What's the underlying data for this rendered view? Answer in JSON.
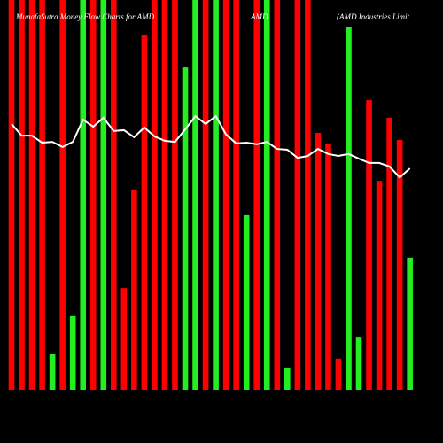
{
  "chart_data": {
    "type": "bar",
    "title": "MunafaSutra Money Flow Charts for AMD",
    "subtitle": "AMD",
    "company": "(AMD Industries Limit",
    "categories": [
      null,
      null,
      null,
      null,
      null,
      null,
      null,
      null,
      null,
      null,
      null,
      null,
      null,
      null,
      null,
      null,
      null,
      null,
      null,
      null,
      null,
      null,
      null,
      null,
      null,
      null,
      null,
      null,
      null,
      null,
      null,
      null,
      null,
      null,
      null,
      null,
      null,
      null,
      null,
      null
    ],
    "values": [
      100,
      100,
      100,
      100,
      9.1,
      100,
      18.9,
      100,
      100,
      100,
      100,
      26.1,
      51.4,
      91.1,
      100,
      100,
      100,
      82.7,
      100,
      100,
      100,
      100,
      100,
      44.8,
      100,
      100,
      100,
      5.7,
      100,
      100,
      65.9,
      63,
      8,
      93,
      13.6,
      74.3,
      53.6,
      69.8,
      64.1,
      33.9
    ],
    "colors": [
      "#ff0000",
      "#ff0000",
      "#ff0000",
      "#ff0000",
      "#22ee22",
      "#ff0000",
      "#22ee22",
      "#22ee22",
      "#ff0000",
      "#22ee22",
      "#ff0000",
      "#ff0000",
      "#ff0000",
      "#ff0000",
      "#ff0000",
      "#ff0000",
      "#ff0000",
      "#22ee22",
      "#22ee22",
      "#ff0000",
      "#22ee22",
      "#ff0000",
      "#ff0000",
      "#22ee22",
      "#ff0000",
      "#22ee22",
      "#ff0000",
      "#22ee22",
      "#ff0000",
      "#ff0000",
      "#ff0000",
      "#ff0000",
      "#ff0000",
      "#22ee22",
      "#22ee22",
      "#ff0000",
      "#ff0000",
      "#ff0000",
      "#ff0000",
      "#22ee22"
    ],
    "line": {
      "color": "#ffffff",
      "values": [
        68.2,
        65.2,
        65.2,
        63.4,
        63.6,
        62.3,
        63.6,
        69.3,
        67.5,
        69.8,
        66.4,
        66.6,
        64.8,
        67.3,
        65,
        63.9,
        63.6,
        66.8,
        70.2,
        68.2,
        70.2,
        65.5,
        63.2,
        63.4,
        63,
        63.6,
        61.8,
        61.6,
        59.5,
        60,
        61.8,
        60.5,
        60,
        60.5,
        59.3,
        58.2,
        58.2,
        57.3,
        54.5,
        56.8
      ]
    },
    "ylim": [
      0,
      100
    ]
  }
}
